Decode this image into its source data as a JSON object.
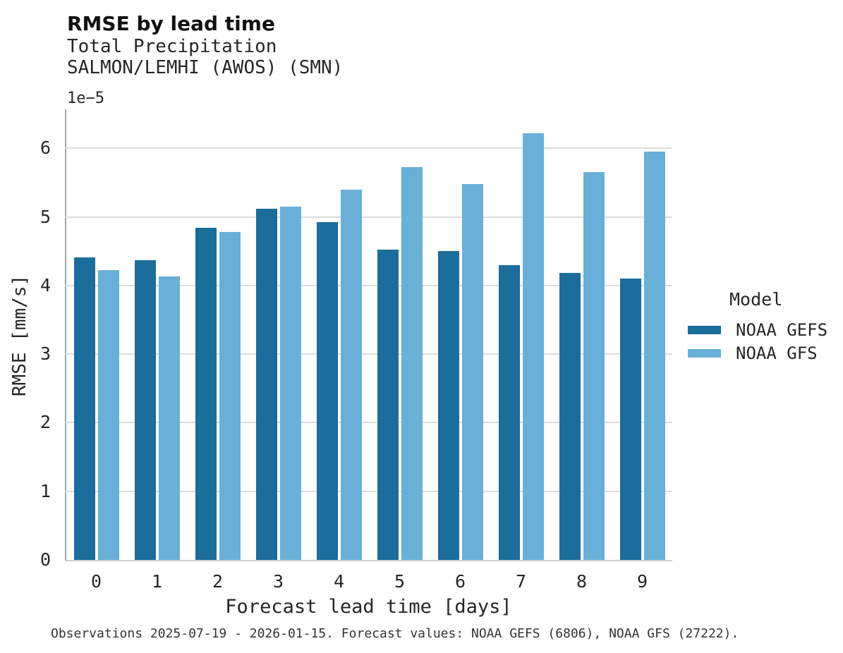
{
  "header": {
    "title": "RMSE by lead time",
    "subtitle": "Total Precipitation",
    "station": "SALMON/LEMHI (AWOS) (SMN)"
  },
  "footer": "Observations 2025-07-19 - 2026-01-15. Forecast values: NOAA GEFS (6806), NOAA GFS (27222).",
  "chart_data": {
    "type": "bar",
    "variant": "grouped",
    "title": "RMSE by lead time",
    "subtitle": "Total Precipitation",
    "station": "SALMON/LEMHI (AWOS) (SMN)",
    "xlabel": "Forecast lead time [days]",
    "ylabel": "RMSE [mm/s]",
    "y_offset_text": "1e−5",
    "y_scale_factor": "1e-5",
    "categories": [
      "0",
      "1",
      "2",
      "3",
      "4",
      "5",
      "6",
      "7",
      "8",
      "9"
    ],
    "series": [
      {
        "name": "NOAA GEFS",
        "color": "#1b6d9b",
        "values": [
          4.41,
          4.37,
          4.84,
          5.12,
          4.93,
          4.52,
          4.5,
          4.3,
          4.18,
          4.1
        ]
      },
      {
        "name": "NOAA GFS",
        "color": "#68b0d7",
        "values": [
          4.23,
          4.13,
          4.78,
          5.15,
          5.4,
          5.73,
          5.48,
          6.22,
          5.65,
          5.95
        ]
      }
    ],
    "yticks": [
      0,
      1,
      2,
      3,
      4,
      5,
      6
    ],
    "ylim": [
      0,
      6.57
    ],
    "grid": "horizontal-only",
    "legend": {
      "title": "Model",
      "position": "right-center"
    }
  }
}
